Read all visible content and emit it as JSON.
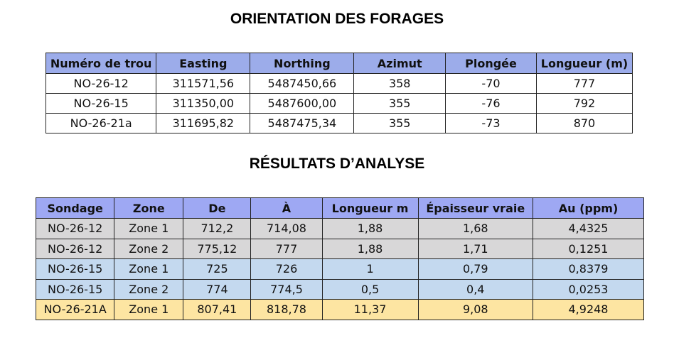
{
  "titles": [
    "ORIENTATION DES FORAGES",
    "RÉSULTATS D’ANALYSE"
  ],
  "tables": [
    {
      "header": [
        "Numéro de trou",
        "Easting",
        "Northing",
        "Azimut",
        "Plongée",
        "Longueur (m)"
      ],
      "rows": [
        [
          "NO-26-12",
          "311571,56",
          "5487450,66",
          "358",
          "-70",
          "777"
        ],
        [
          "NO-26-15",
          "311350,00",
          "5487600,00",
          "355",
          "-76",
          "792"
        ],
        [
          "NO-26-21a",
          "311695,82",
          "5487475,34",
          "355",
          "-73",
          "870"
        ]
      ]
    },
    {
      "header": [
        "Sondage",
        "Zone",
        "De",
        "À",
        "Longueur m",
        "Épaisseur vraie",
        "Au (ppm)"
      ],
      "rows": [
        [
          "NO-26-12",
          "Zone 1",
          "712,2",
          "714,08",
          "1,88",
          "1,68",
          "4,4325"
        ],
        [
          "NO-26-12",
          "Zone 2",
          "775,12",
          "777",
          "1,88",
          "1,71",
          "0,1251"
        ],
        [
          "NO-26-15",
          "Zone 1",
          "725",
          "726",
          "1",
          "0,79",
          "0,8379"
        ],
        [
          "NO-26-15",
          "Zone 2",
          "774",
          "774,5",
          "0,5",
          "0,4",
          "0,0253"
        ],
        [
          "NO-26-21A",
          "Zone 1",
          "807,41",
          "818,78",
          "11,37",
          "9,08",
          "4,9248"
        ]
      ]
    }
  ]
}
